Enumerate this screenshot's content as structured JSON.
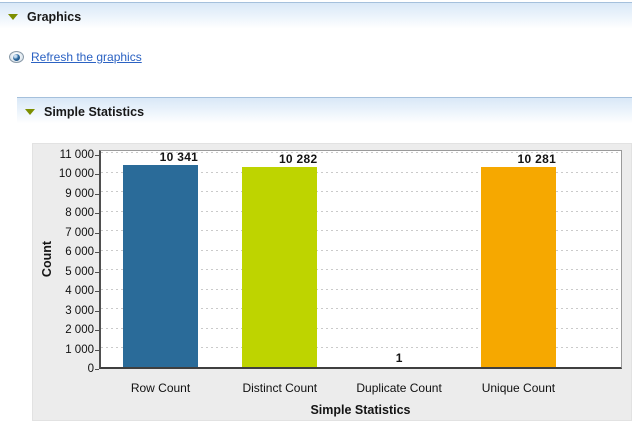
{
  "sections": [
    {
      "id": "graphics",
      "title": "Graphics"
    },
    {
      "id": "simple-statistics",
      "title": "Simple Statistics"
    }
  ],
  "refresh_link": {
    "label": "Refresh the graphics",
    "icon": "eye-icon"
  },
  "colors": {
    "section_triangle": "#7d8f00",
    "link_blue": "#2b62c3",
    "panel_background": "#ececec",
    "bar_blue": "#2a6b99",
    "bar_green": "#bed400",
    "bar_orange": "#f6a800"
  },
  "chart_data": {
    "type": "bar",
    "title": "",
    "xlabel": "Simple Statistics",
    "ylabel": "Count",
    "categories": [
      "Row Count",
      "Distinct Count",
      "Duplicate Count",
      "Unique Count"
    ],
    "values": [
      10341,
      10282,
      1,
      10281
    ],
    "value_labels": [
      "10 341",
      "10 282",
      "1",
      "10 281"
    ],
    "bar_colors": [
      "#2a6b99",
      "#bed400",
      null,
      "#f6a800"
    ],
    "ylim": [
      0,
      11000
    ],
    "ytick_step": 1000,
    "ytick_labels": [
      "0",
      "1 000",
      "2 000",
      "3 000",
      "4 000",
      "5 000",
      "6 000",
      "7 000",
      "8 000",
      "9 000",
      "10 000",
      "11 000"
    ],
    "grid": "horizontal-dashed",
    "legend": "none"
  }
}
